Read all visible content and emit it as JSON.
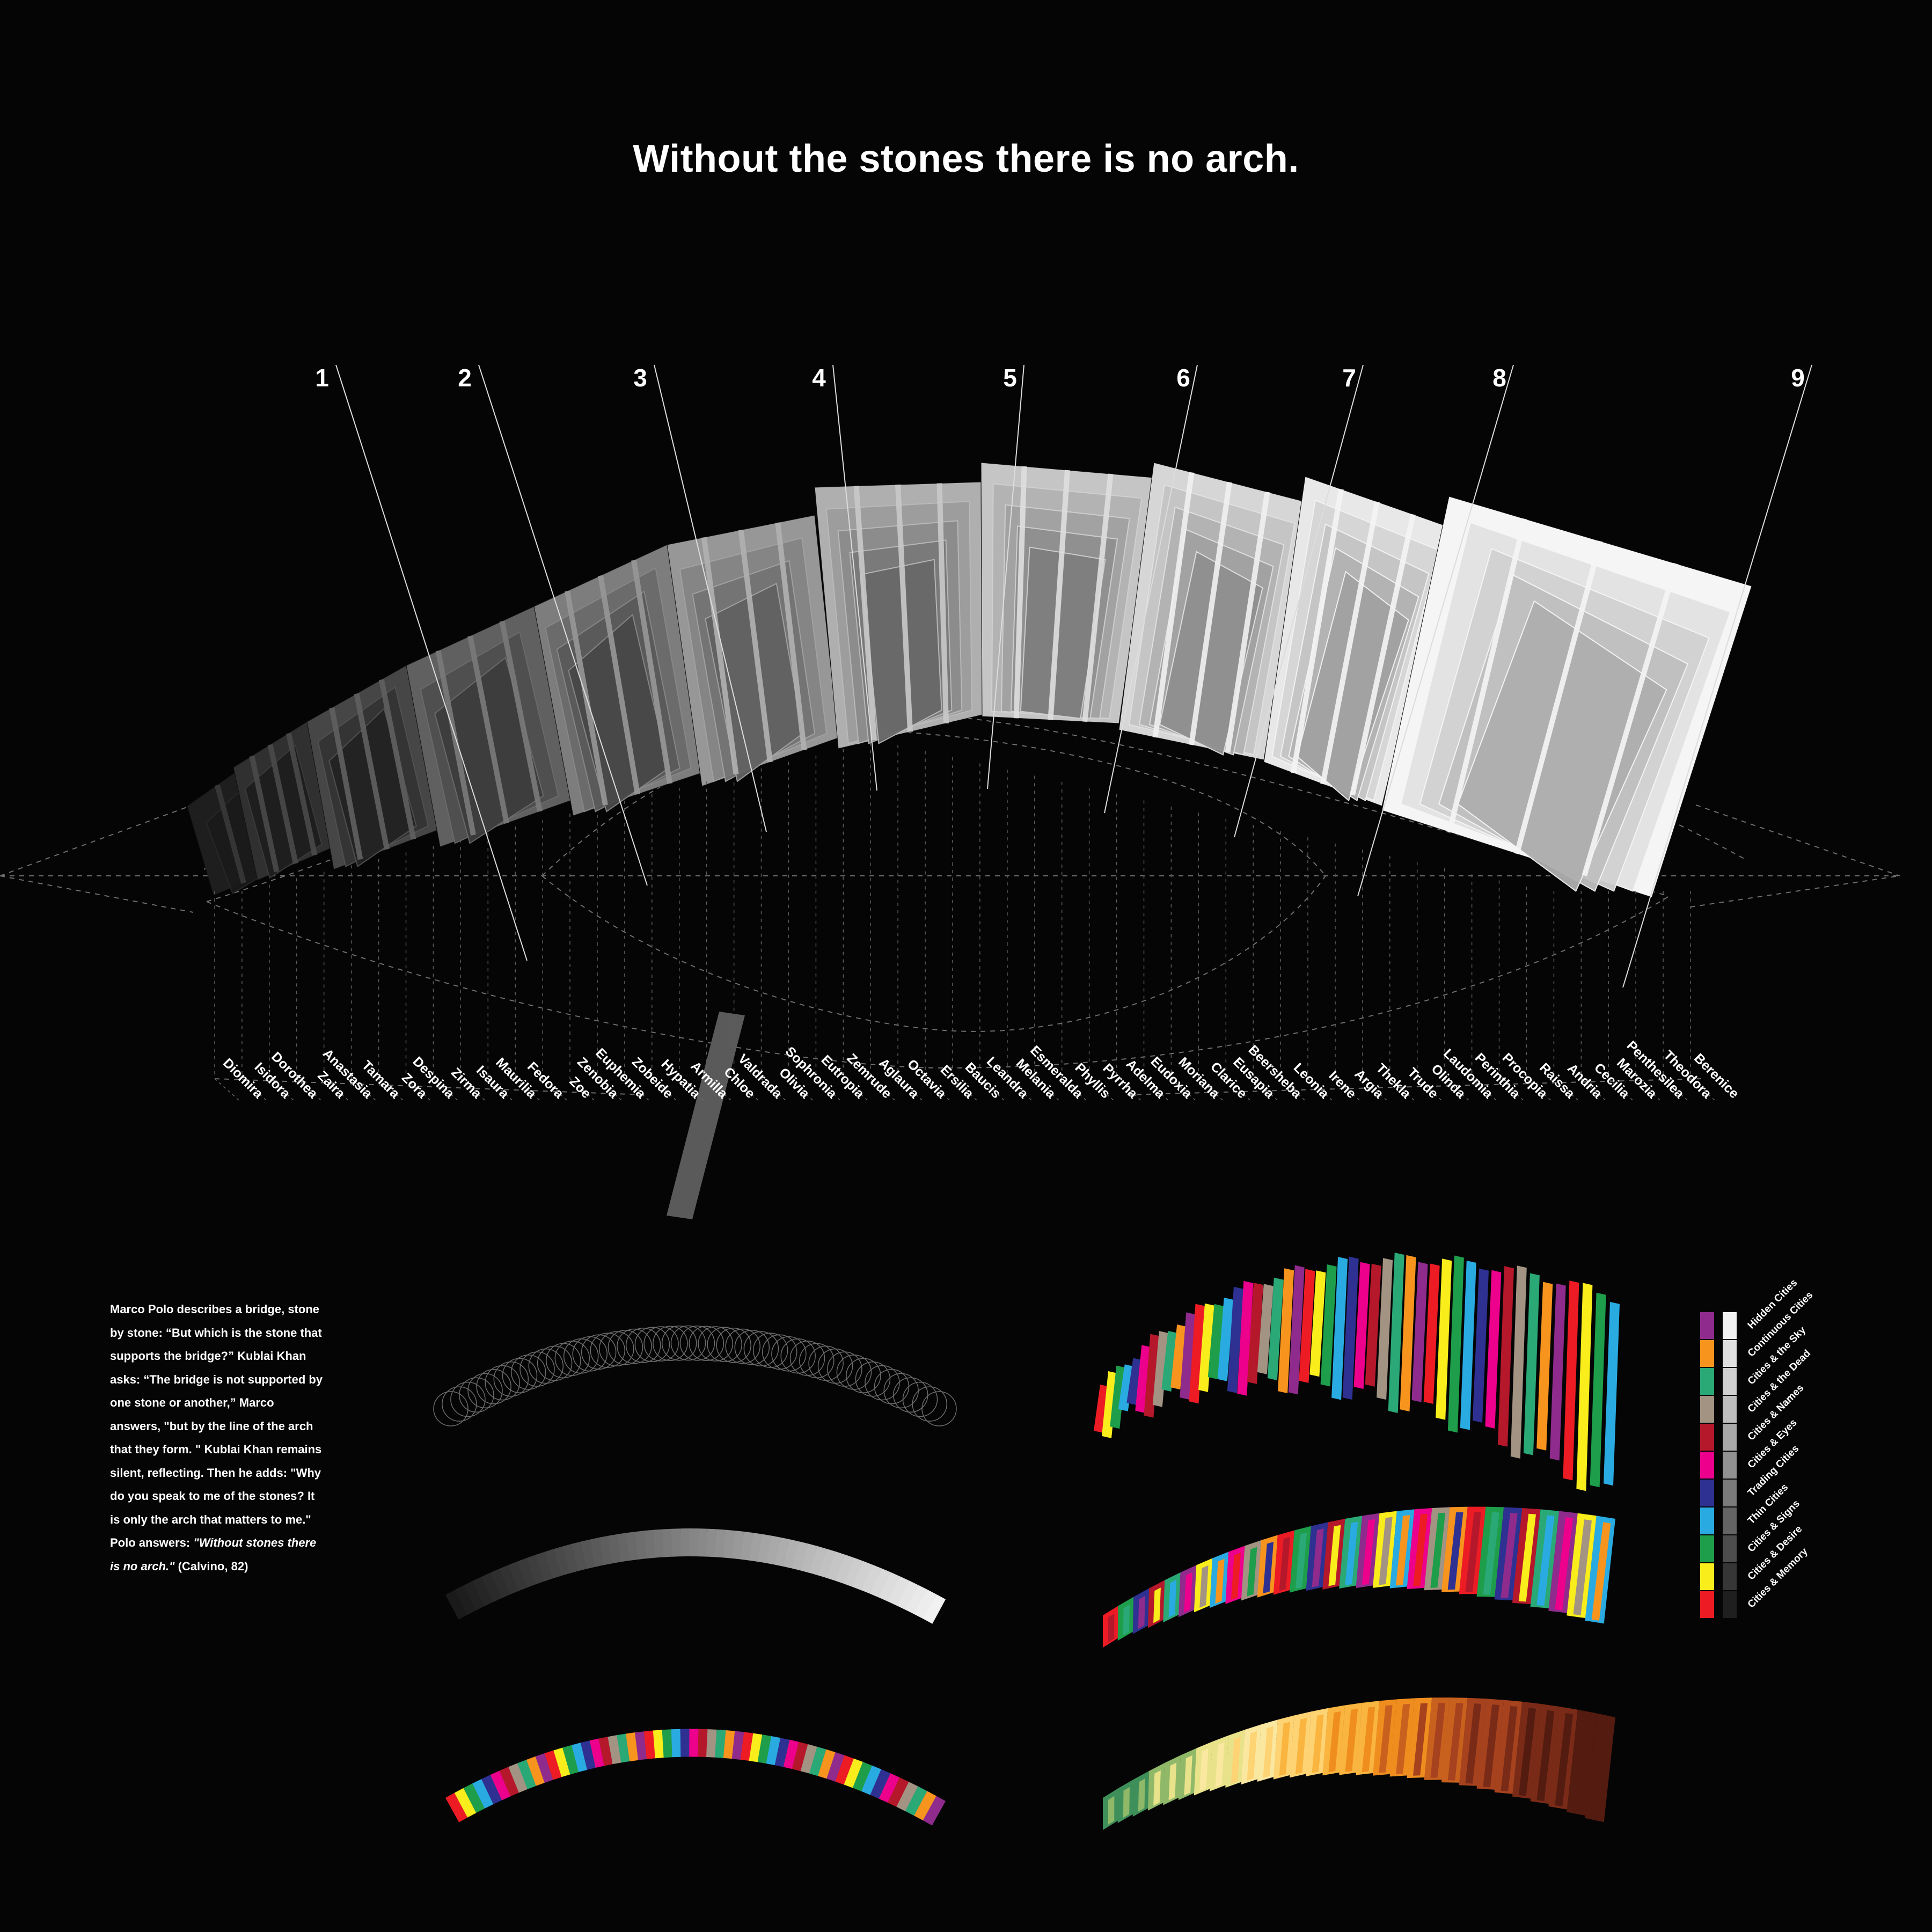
{
  "title": "Without the stones there is no arch.",
  "quote": {
    "lines": [
      "Marco Polo describes a bridge, stone",
      "by stone: “But which is the stone that",
      "supports the bridge?” Kublai Khan",
      "asks: “The bridge is not supported by",
      "one stone or another,” Marco",
      "answers, \"but by the line of the arch",
      "that they form. \" Kublai Khan remains",
      "silent, reflecting. Then he adds: \"Why",
      "do you speak to me of the stones? It",
      "is only the arch that matters to me.\""
    ],
    "last_line_prefix": "Polo answers: ",
    "emphasis_1": "\"Without stones there",
    "emphasis_2": "is no arch.\"",
    "citation": " (Calvino, 82)"
  },
  "chapters": [
    "1",
    "2",
    "3",
    "4",
    "5",
    "6",
    "7",
    "8",
    "9"
  ],
  "cities": [
    "Diomira",
    "Isidora",
    "Dorothea",
    "Zaira",
    "Anastasia",
    "Tamara",
    "Zora",
    "Despina",
    "Zirma",
    "Isaura",
    "Maurilia",
    "Fedora",
    "Zoe",
    "Zenobia",
    "Euphemia",
    "Zobeide",
    "Hypatia",
    "Armilla",
    "Chloe",
    "Valdrada",
    "Olivia",
    "Sophronia",
    "Eutropia",
    "Zemrude",
    "Aglaura",
    "Octavia",
    "Ersilia",
    "Baucis",
    "Leandra",
    "Melania",
    "Esmeralda",
    "Phyllis",
    "Pyrrha",
    "Adelma",
    "Eudoxia",
    "Moriana",
    "Clarice",
    "Eusapia",
    "Beersheba",
    "Leonia",
    "Irene",
    "Argia",
    "Thekla",
    "Trude",
    "Olinda",
    "Laudomia",
    "Perinthia",
    "Procopia",
    "Raissa",
    "Andria",
    "Cecilia",
    "Marozia",
    "Penthesilea",
    "Theodora",
    "Berenice"
  ],
  "categories": [
    {
      "name": "Hidden Cities",
      "color": "#8e2b8c",
      "gray": "#f2f2f2"
    },
    {
      "name": "Continuous Cities",
      "color": "#f7941e",
      "gray": "#e0e0e0"
    },
    {
      "name": "Cities & the Sky",
      "color": "#2aa876",
      "gray": "#cfcfcf"
    },
    {
      "name": "Cities & the Dead",
      "color": "#a39382",
      "gray": "#bdbdbd"
    },
    {
      "name": "Cities & Names",
      "color": "#b5182b",
      "gray": "#a8a8a8"
    },
    {
      "name": "Cities & Eyes",
      "color": "#ec008c",
      "gray": "#929292"
    },
    {
      "name": "Trading Cities",
      "color": "#2e3192",
      "gray": "#7b7b7b"
    },
    {
      "name": "Thin Cities",
      "color": "#29abe2",
      "gray": "#646464"
    },
    {
      "name": "Cities & Signs",
      "color": "#1e9e4a",
      "gray": "#4d4d4d"
    },
    {
      "name": "Cities & Desire",
      "color": "#f9ed1c",
      "gray": "#363636"
    },
    {
      "name": "Cities & Memory",
      "color": "#ed1c24",
      "gray": "#1f1f1f"
    }
  ],
  "palette": {
    "background": "#050506",
    "text": "#ffffff",
    "guides": "#6a6a6a",
    "warm_ramp": [
      "#3f8f5a",
      "#8fb868",
      "#e8e28a",
      "#fbe8a0",
      "#fdd374",
      "#f9b53f",
      "#ef8e1f",
      "#c9611e",
      "#a6421e",
      "#7a2b17",
      "#541b10"
    ]
  }
}
